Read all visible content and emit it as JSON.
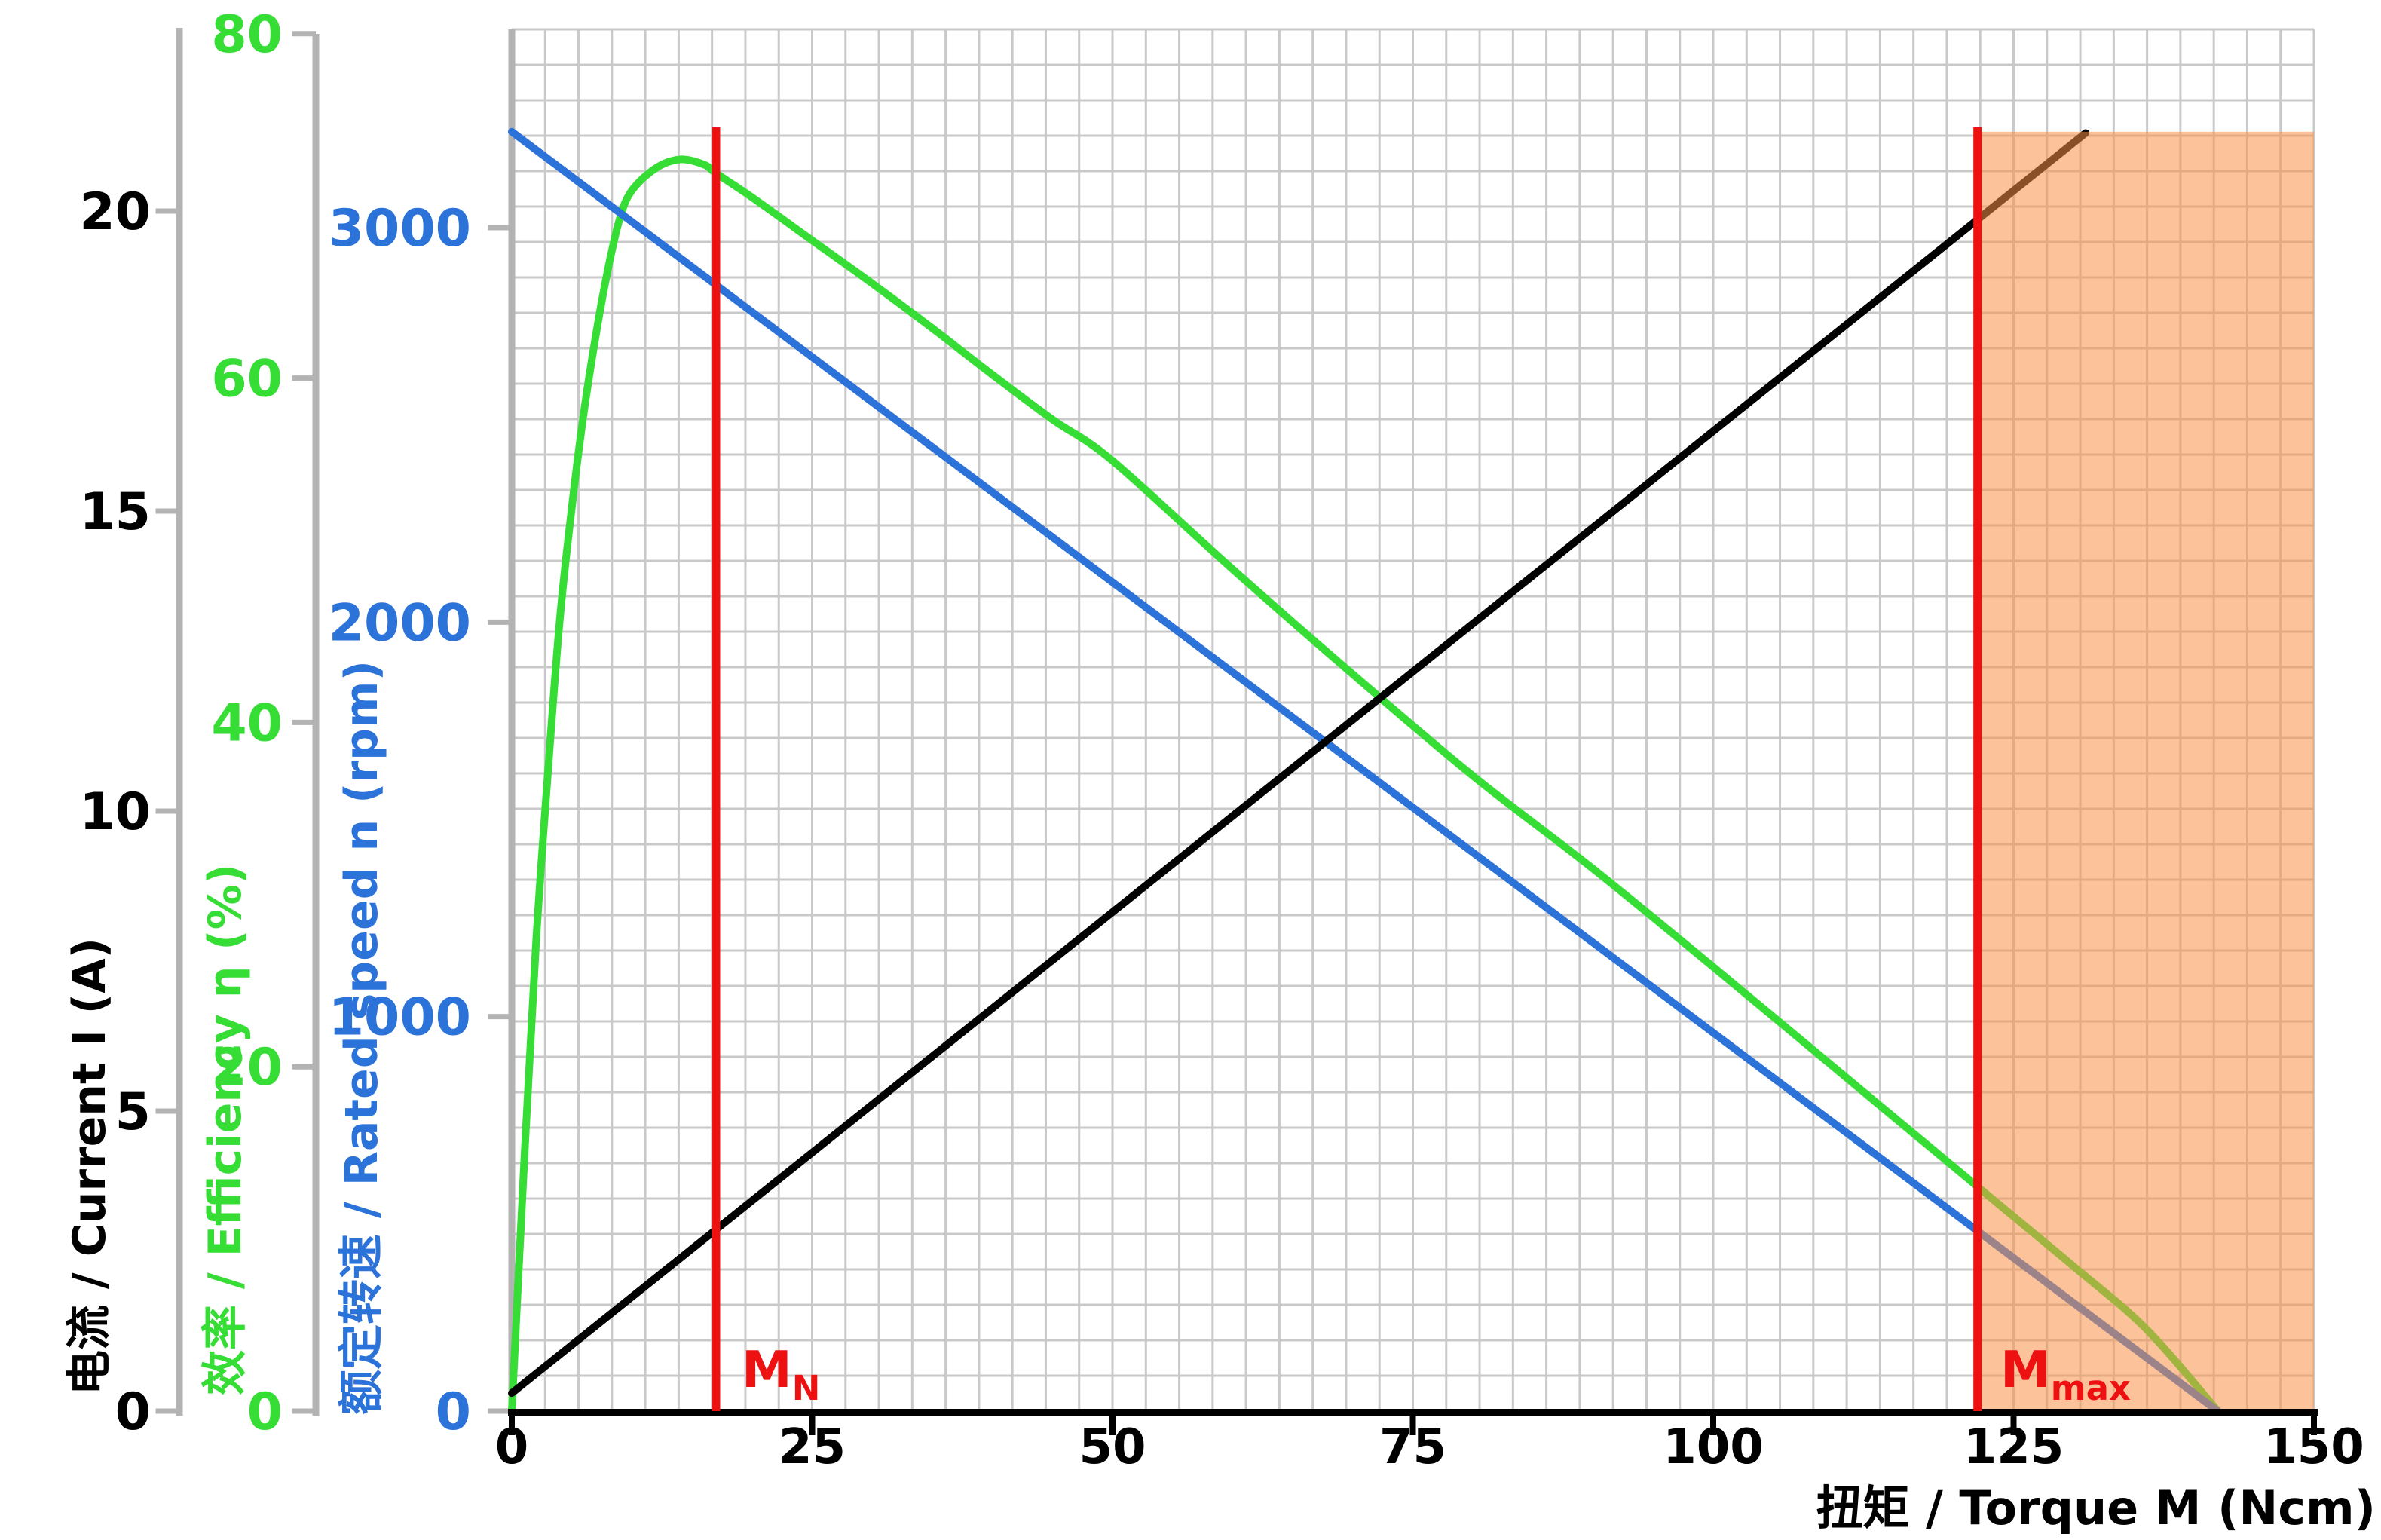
{
  "chart_data": {
    "type": "line",
    "title": "",
    "xlabel": "扭矩 / Torque M (Ncm)",
    "x_range": [
      0,
      150
    ],
    "x_ticks": [
      0,
      25,
      50,
      75,
      100,
      125,
      150
    ],
    "grid": "on",
    "legend_position": "none",
    "axes": [
      {
        "id": "current",
        "label": "电流 / Current I (A)",
        "color": "#000000",
        "range": [
          0,
          23
        ],
        "ticks": [
          0,
          5,
          10,
          15,
          20
        ]
      },
      {
        "id": "efficiency",
        "label": "效率 / Efficiency η  (%)",
        "color": "#35dd35",
        "range": [
          0,
          80
        ],
        "ticks": [
          0,
          20,
          40,
          60,
          80
        ]
      },
      {
        "id": "speed",
        "label": "额定转速 / Rated speed n (rpm)",
        "color": "#2b72d9",
        "range": [
          0,
          3500
        ],
        "ticks": [
          0,
          1000,
          2000,
          3000
        ]
      }
    ],
    "series": [
      {
        "name": "efficiency",
        "axis": "efficiency",
        "color": "#35dd35",
        "smooth": true,
        "points": [
          [
            0,
            0
          ],
          [
            1,
            14
          ],
          [
            2,
            27
          ],
          [
            3,
            37
          ],
          [
            4,
            46
          ],
          [
            5,
            52.5
          ],
          [
            6,
            58
          ],
          [
            7,
            62.5
          ],
          [
            8,
            66.3
          ],
          [
            9,
            69.3
          ],
          [
            10,
            70.9
          ],
          [
            12,
            72.2
          ],
          [
            14,
            72.7
          ],
          [
            16,
            72.4
          ],
          [
            17,
            71.9
          ],
          [
            20,
            70.5
          ],
          [
            25,
            68.0
          ],
          [
            30,
            65.5
          ],
          [
            35,
            62.9
          ],
          [
            40,
            60.2
          ],
          [
            45,
            57.6
          ],
          [
            50,
            55.2
          ],
          [
            60,
            48.9
          ],
          [
            70,
            42.8
          ],
          [
            80,
            36.9
          ],
          [
            90,
            31.5
          ],
          [
            100,
            25.8
          ],
          [
            110,
            20.0
          ],
          [
            120,
            14.2
          ],
          [
            125,
            11.3
          ],
          [
            130,
            8.4
          ],
          [
            136,
            4.8
          ],
          [
            142,
            0
          ]
        ]
      },
      {
        "name": "rated_speed",
        "axis": "speed",
        "color": "#2b72d9",
        "smooth": false,
        "points": [
          [
            0,
            3243
          ],
          [
            142,
            0
          ]
        ]
      },
      {
        "name": "current",
        "axis": "current",
        "color": "#000000",
        "smooth": false,
        "points": [
          [
            0,
            0.3
          ],
          [
            131,
            21.3
          ]
        ]
      }
    ],
    "markers": [
      {
        "id": "mn",
        "x": 17,
        "label_main": "M",
        "label_sub": "N",
        "color": "#ee1111"
      },
      {
        "id": "mmax",
        "x": 122,
        "label_main": "M",
        "label_sub": "max",
        "color": "#ee1111"
      }
    ],
    "overload_region": {
      "x_from": 122,
      "x_to": 150,
      "y_top_speed_rpm": 3243,
      "fill": "rgba(250,146,71,0.55)"
    },
    "key_values": {
      "rated_torque_Ncm": 17,
      "max_torque_Ncm": 122,
      "no_load_speed_rpm": 3243,
      "stall_torque_Ncm": 142,
      "peak_efficiency_pct": 72.7
    }
  }
}
